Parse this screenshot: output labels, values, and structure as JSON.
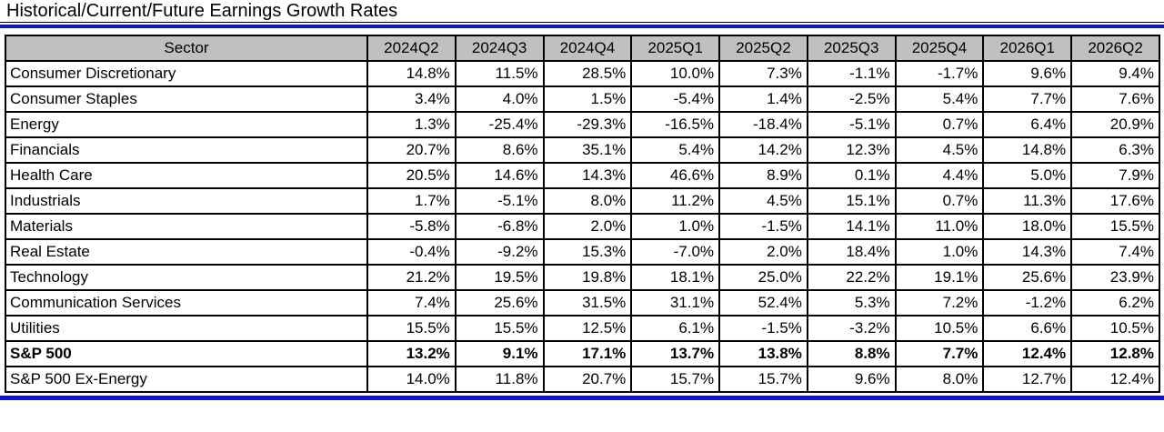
{
  "title": "Historical/Current/Future Earnings Growth Rates",
  "colors": {
    "accent_blue": "#1111d8",
    "header_bg": "#c0c0c0",
    "border_black": "#000000",
    "cell_bg": "#ffffff",
    "text": "#000000"
  },
  "chart_data": {
    "type": "table",
    "title": "Historical/Current/Future Earnings Growth Rates",
    "columns": [
      "Sector",
      "2024Q2",
      "2024Q3",
      "2024Q4",
      "2025Q1",
      "2025Q2",
      "2025Q3",
      "2025Q4",
      "2026Q1",
      "2026Q2"
    ],
    "rows": [
      {
        "sector": "Consumer Discretionary",
        "bold": false,
        "values": [
          "14.8%",
          "11.5%",
          "28.5%",
          "10.0%",
          "7.3%",
          "-1.1%",
          "-1.7%",
          "9.6%",
          "9.4%"
        ]
      },
      {
        "sector": "Consumer Staples",
        "bold": false,
        "values": [
          "3.4%",
          "4.0%",
          "1.5%",
          "-5.4%",
          "1.4%",
          "-2.5%",
          "5.4%",
          "7.7%",
          "7.6%"
        ]
      },
      {
        "sector": "Energy",
        "bold": false,
        "values": [
          "1.3%",
          "-25.4%",
          "-29.3%",
          "-16.5%",
          "-18.4%",
          "-5.1%",
          "0.7%",
          "6.4%",
          "20.9%"
        ]
      },
      {
        "sector": "Financials",
        "bold": false,
        "values": [
          "20.7%",
          "8.6%",
          "35.1%",
          "5.4%",
          "14.2%",
          "12.3%",
          "4.5%",
          "14.8%",
          "6.3%"
        ]
      },
      {
        "sector": "Health Care",
        "bold": false,
        "values": [
          "20.5%",
          "14.6%",
          "14.3%",
          "46.6%",
          "8.9%",
          "0.1%",
          "4.4%",
          "5.0%",
          "7.9%"
        ]
      },
      {
        "sector": "Industrials",
        "bold": false,
        "values": [
          "1.7%",
          "-5.1%",
          "8.0%",
          "11.2%",
          "4.5%",
          "15.1%",
          "0.7%",
          "11.3%",
          "17.6%"
        ]
      },
      {
        "sector": "Materials",
        "bold": false,
        "values": [
          "-5.8%",
          "-6.8%",
          "2.0%",
          "1.0%",
          "-1.5%",
          "14.1%",
          "11.0%",
          "18.0%",
          "15.5%"
        ]
      },
      {
        "sector": "Real Estate",
        "bold": false,
        "values": [
          "-0.4%",
          "-9.2%",
          "15.3%",
          "-7.0%",
          "2.0%",
          "18.4%",
          "1.0%",
          "14.3%",
          "7.4%"
        ]
      },
      {
        "sector": "Technology",
        "bold": false,
        "values": [
          "21.2%",
          "19.5%",
          "19.8%",
          "18.1%",
          "25.0%",
          "22.2%",
          "19.1%",
          "25.6%",
          "23.9%"
        ]
      },
      {
        "sector": "Communication Services",
        "bold": false,
        "values": [
          "7.4%",
          "25.6%",
          "31.5%",
          "31.1%",
          "52.4%",
          "5.3%",
          "7.2%",
          "-1.2%",
          "6.2%"
        ]
      },
      {
        "sector": "Utilities",
        "bold": false,
        "values": [
          "15.5%",
          "15.5%",
          "12.5%",
          "6.1%",
          "-1.5%",
          "-3.2%",
          "10.5%",
          "6.6%",
          "10.5%"
        ]
      },
      {
        "sector": "S&P 500",
        "bold": true,
        "values": [
          "13.2%",
          "9.1%",
          "17.1%",
          "13.7%",
          "13.8%",
          "8.8%",
          "7.7%",
          "12.4%",
          "12.8%"
        ]
      },
      {
        "sector": "S&P 500 Ex-Energy",
        "bold": false,
        "values": [
          "14.0%",
          "11.8%",
          "20.7%",
          "15.7%",
          "15.7%",
          "9.6%",
          "8.0%",
          "12.7%",
          "12.4%"
        ]
      }
    ]
  }
}
